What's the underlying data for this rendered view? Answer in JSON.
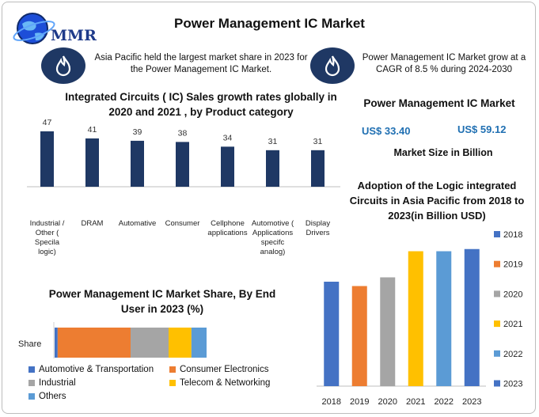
{
  "header": {
    "title": "Power Management IC Market",
    "logo_text": "MMR"
  },
  "highlights": [
    {
      "text": "Asia Pacific held the largest market share in 2023 for the Power Management IC Market.",
      "icon": "flame-icon"
    },
    {
      "text": "Power Management IC Market grow at a CAGR of 8.5 % during 2024-2030",
      "icon": "flame-icon"
    }
  ],
  "kpi": {
    "title": "Power Management IC Market",
    "value_2023": "US$ 33.40",
    "value_2030": "US$ 59.12",
    "caption": "Market Size in Billion"
  },
  "colors": {
    "navy": "#1f3864",
    "blue": "#4472c4",
    "orange": "#ed7d31",
    "gray": "#a5a5a5",
    "yellow": "#ffc000",
    "light_blue": "#5b9bd5"
  },
  "chart_data": [
    {
      "type": "bar",
      "title": "Integrated Circuits ( IC) Sales growth rates globally in 2020 and 2021 , by Product category",
      "categories": [
        "Industrial / Other ( Specila logic)",
        "DRAM",
        "Automative",
        "Consumer",
        "Cellphone applications",
        "Automotive ( Applications specifc analog)",
        "Display Drivers"
      ],
      "values": [
        47,
        41,
        39,
        38,
        34,
        31,
        31
      ],
      "ylim": [
        0,
        50
      ],
      "grid": false,
      "color": "#1f3864"
    },
    {
      "type": "bar",
      "title": "Adoption of the Logic integrated Circuits in Asia Pacific from 2018 to 2023(in Billion USD)",
      "categories": [
        "2018",
        "2019",
        "2020",
        "2021",
        "2022",
        "2023"
      ],
      "values": [
        24,
        23,
        25,
        31,
        31,
        31.5
      ],
      "ylim": [
        0,
        34
      ],
      "colors": [
        "#4472c4",
        "#ed7d31",
        "#a5a5a5",
        "#ffc000",
        "#5b9bd5",
        "#4472c4"
      ],
      "legend": {
        "position": "right",
        "entries": [
          "2018",
          "2019",
          "2020",
          "2021",
          "2022",
          "2023"
        ]
      }
    },
    {
      "type": "bar",
      "title": "Power Management IC Market Share, By End User in 2023 (%)",
      "categories": [
        "Share"
      ],
      "series": [
        {
          "name": "Automotive & Transportation",
          "values": [
            2
          ],
          "color": "#4472c4"
        },
        {
          "name": "Consumer Electronics",
          "values": [
            48
          ],
          "color": "#ed7d31"
        },
        {
          "name": "Industrial",
          "values": [
            25
          ],
          "color": "#a5a5a5"
        },
        {
          "name": "Telecom & Networking",
          "values": [
            15
          ],
          "color": "#ffc000"
        },
        {
          "name": "Others",
          "values": [
            10
          ],
          "color": "#5b9bd5"
        }
      ],
      "stacked": true,
      "legend": {
        "position": "bottom"
      }
    }
  ]
}
